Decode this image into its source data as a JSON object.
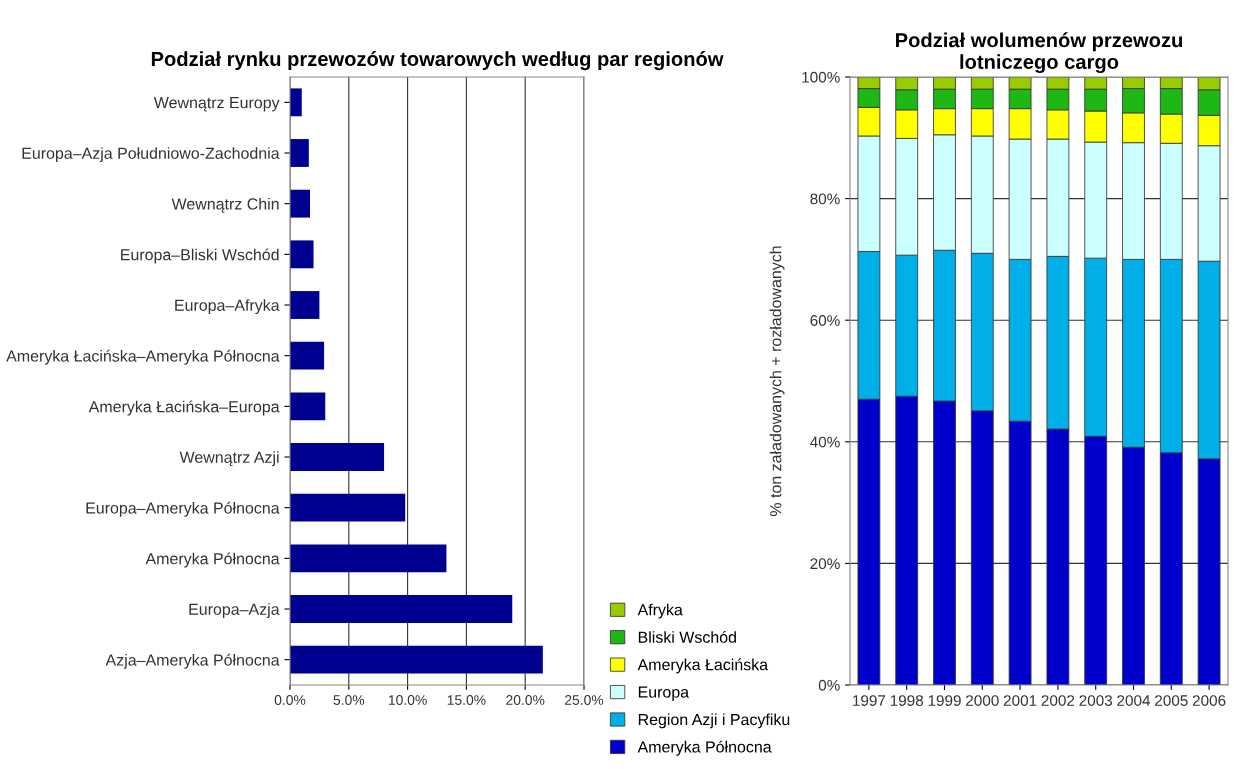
{
  "chart_data": [
    {
      "type": "bar",
      "title": "Podział rynku przewozów towarowych według par regionów",
      "orientation": "horizontal",
      "categories": [
        "Wewnątrz Europy",
        "Europa–Azja Południowo-Zachodnia",
        "Wewnątrz Chin",
        "Europa–Bliski Wschód",
        "Europa–Afryka",
        "Ameryka Łacińska–Ameryka Północna",
        "Ameryka Łacińska–Europa",
        "Wewnątrz Azji",
        "Europa–Ameryka Północna",
        "Ameryka Północna",
        "Europa–Azja",
        "Azja–Ameryka Północna"
      ],
      "values": [
        1.0,
        1.6,
        1.7,
        2.0,
        2.5,
        2.9,
        3.0,
        8.0,
        9.8,
        13.3,
        18.9,
        21.5
      ],
      "color": "#000090",
      "xlim": [
        0,
        25
      ],
      "xticks": [
        {
          "value": 0,
          "label": "0.0%"
        },
        {
          "value": 5,
          "label": "5.0%"
        },
        {
          "value": 10,
          "label": "10.0%"
        },
        {
          "value": 15,
          "label": "15.0%"
        },
        {
          "value": 20,
          "label": "20.0%"
        },
        {
          "value": 25,
          "label": "25.0%"
        }
      ],
      "grid": "x",
      "legend": false
    },
    {
      "type": "bar",
      "title": "Podział wolumenów przewozu lotniczego cargo",
      "ylabel": "% ton załadowanych + rozładowanych",
      "stacked": true,
      "categories": [
        "1997",
        "1998",
        "1999",
        "2000",
        "2001",
        "2002",
        "2003",
        "2004",
        "2005",
        "2006"
      ],
      "series": [
        {
          "name": "Ameryka Północna",
          "color": "#0000cc",
          "values": [
            47.0,
            47.5,
            46.7,
            45.1,
            43.4,
            42.1,
            40.9,
            39.1,
            38.2,
            37.2
          ]
        },
        {
          "name": "Region Azji i Pacyfiku",
          "color": "#00aee8",
          "values": [
            24.3,
            23.2,
            24.8,
            25.9,
            26.6,
            28.4,
            29.3,
            30.9,
            31.8,
            32.5
          ]
        },
        {
          "name": "Europa",
          "color": "#ccffff",
          "values": [
            19.0,
            19.2,
            19.0,
            19.3,
            19.8,
            19.3,
            19.1,
            19.2,
            19.1,
            19.0
          ]
        },
        {
          "name": "Ameryka Łacińska",
          "color": "#ffff00",
          "values": [
            4.7,
            4.7,
            4.3,
            4.5,
            5.0,
            4.8,
            5.1,
            4.9,
            4.8,
            5.0
          ]
        },
        {
          "name": "Bliski Wschód",
          "color": "#1fb714",
          "values": [
            3.1,
            3.3,
            3.2,
            3.2,
            3.2,
            3.4,
            3.6,
            4.0,
            4.2,
            4.2
          ]
        },
        {
          "name": "Afryka",
          "color": "#99cc00",
          "values": [
            1.9,
            2.1,
            2.0,
            2.0,
            2.0,
            2.0,
            2.0,
            1.9,
            1.9,
            2.1
          ]
        }
      ],
      "ylim": [
        0,
        100
      ],
      "yticks": [
        {
          "value": 0,
          "label": "0%"
        },
        {
          "value": 20,
          "label": "20%"
        },
        {
          "value": 40,
          "label": "40%"
        },
        {
          "value": 60,
          "label": "60%"
        },
        {
          "value": 80,
          "label": "80%"
        },
        {
          "value": 100,
          "label": "100%"
        }
      ],
      "grid": "y",
      "legend": "bottom left"
    }
  ]
}
